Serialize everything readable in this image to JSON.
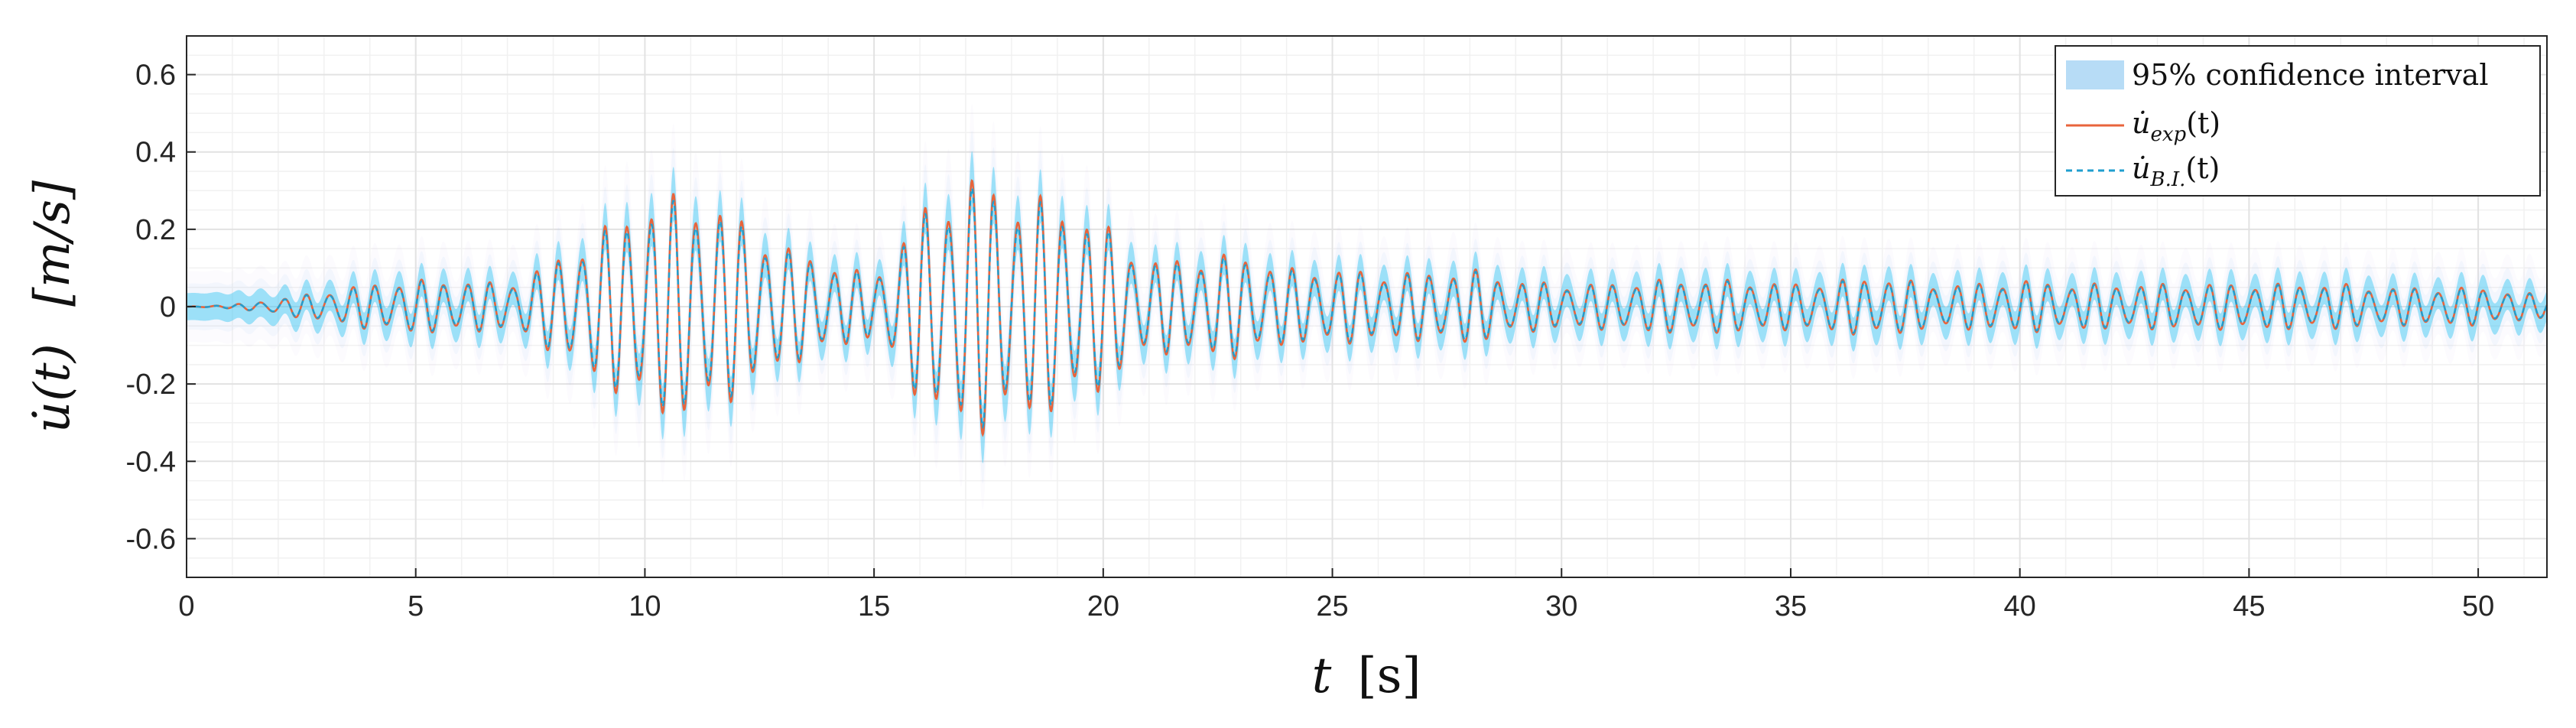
{
  "chart_data": {
    "type": "line",
    "xlabel": {
      "main": "t",
      "unit": "[s]"
    },
    "ylabel": {
      "main": "u̇(t)",
      "unit": "[m/s]"
    },
    "xlim": [
      0,
      51.5
    ],
    "ylim": [
      -0.7,
      0.7
    ],
    "xticks": [
      0,
      5,
      10,
      15,
      20,
      25,
      30,
      35,
      40,
      45,
      50
    ],
    "xtick_labels": [
      "0",
      "5",
      "10",
      "15",
      "20",
      "25",
      "30",
      "35",
      "40",
      "45",
      "50"
    ],
    "yticks": [
      -0.6,
      -0.4,
      -0.2,
      0,
      0.2,
      0.4,
      0.6
    ],
    "ytick_labels": [
      "-0.6",
      "-0.4",
      "-0.2",
      "0",
      "0.2",
      "0.4",
      "0.6"
    ],
    "grid": true,
    "minor_grid": true,
    "legend": {
      "placement": "top-right",
      "entries": [
        {
          "text": "95% confidence interval",
          "style": "patch"
        },
        {
          "main": "u̇",
          "sub": "exp",
          "suffix": "(t)",
          "style": "solid"
        },
        {
          "main": "u̇",
          "sub": "B.I.",
          "suffix": "(t)",
          "style": "dashed"
        }
      ]
    },
    "series": [
      {
        "key": "exp",
        "color": "#e8643c",
        "envelope": {
          "t": [
            0,
            1,
            2,
            3,
            4,
            5,
            6,
            7,
            8,
            9,
            10,
            11,
            12,
            13,
            14,
            15,
            16,
            17,
            18,
            19,
            20,
            21,
            22,
            23,
            24,
            25,
            26,
            27,
            28,
            29,
            30,
            31,
            32,
            33,
            34,
            35,
            36,
            37,
            38,
            39,
            40,
            41,
            42,
            43,
            44,
            45,
            46,
            47,
            48,
            49,
            50,
            51.5
          ],
          "amplitude": [
            0.0,
            0.005,
            0.02,
            0.04,
            0.06,
            0.07,
            0.07,
            0.06,
            0.12,
            0.2,
            0.28,
            0.3,
            0.24,
            0.16,
            0.12,
            0.08,
            0.25,
            0.35,
            0.3,
            0.28,
            0.22,
            0.12,
            0.13,
            0.14,
            0.1,
            0.1,
            0.09,
            0.09,
            0.1,
            0.07,
            0.06,
            0.06,
            0.07,
            0.07,
            0.07,
            0.06,
            0.07,
            0.08,
            0.06,
            0.06,
            0.07,
            0.06,
            0.06,
            0.06,
            0.06,
            0.06,
            0.06,
            0.06,
            0.05,
            0.05,
            0.05,
            0.03
          ]
        },
        "dominant_frequency_hz": 2.0
      },
      {
        "key": "bi",
        "color": "#1f9ecf",
        "envelope_ratio": 0.94
      }
    ],
    "confidence_band": {
      "color": "#33c6f2",
      "halfwidth_base": 0.035,
      "halfwidth_scale": 0.12
    }
  }
}
